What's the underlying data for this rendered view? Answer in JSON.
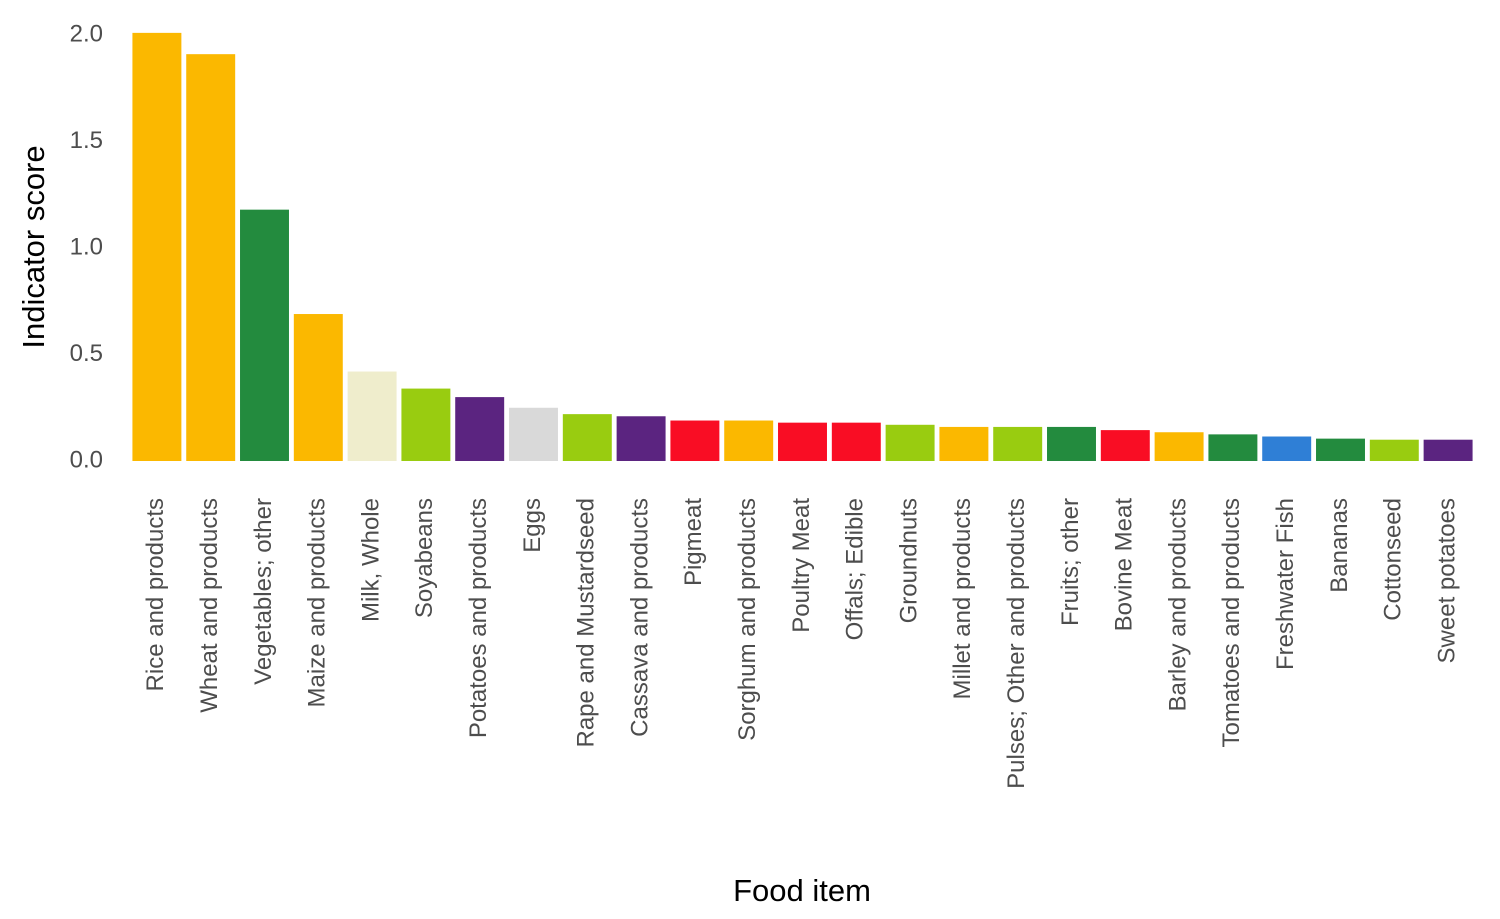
{
  "chart_data": {
    "type": "bar",
    "x_label": "Food item",
    "y_label": "Indicator score",
    "categories": [
      "Rice and products",
      "Wheat and products",
      "Vegetables; other",
      "Maize and products",
      "Milk, Whole",
      "Soyabeans",
      "Potatoes and products",
      "Eggs",
      "Rape and Mustardseed",
      "Cassava and products",
      "Pigmeat",
      "Sorghum and products",
      "Poultry Meat",
      "Offals; Edible",
      "Groundnuts",
      "Millet and products",
      "Pulses; Other and products",
      "Fruits; other",
      "Bovine Meat",
      "Barley and products",
      "Tomatoes and products",
      "Freshwater Fish",
      "Bananas",
      "Cottonseed",
      "Sweet potatoes"
    ],
    "values": [
      2.01,
      1.91,
      1.18,
      0.69,
      0.42,
      0.34,
      0.3,
      0.25,
      0.22,
      0.21,
      0.19,
      0.19,
      0.18,
      0.18,
      0.17,
      0.16,
      0.16,
      0.16,
      0.145,
      0.135,
      0.125,
      0.115,
      0.105,
      0.1,
      0.1
    ],
    "colors": [
      "#fbb800",
      "#fbb800",
      "#238b3e",
      "#fbb800",
      "#efedcc",
      "#99cc10",
      "#5b2480",
      "#d9d9d9",
      "#99cc10",
      "#5b2480",
      "#f90d24",
      "#fbb800",
      "#f90d24",
      "#f90d24",
      "#99cc10",
      "#fbb800",
      "#99cc10",
      "#238b3e",
      "#f90d24",
      "#fbb800",
      "#238b3e",
      "#2f7fd6",
      "#238b3e",
      "#99cc10",
      "#5b2480"
    ],
    "ylim": [
      0,
      2.03
    ],
    "yticks": [
      {
        "value": 0,
        "label": "0.0"
      },
      0.5,
      {
        "value": 1,
        "label": "1.0"
      },
      1.5,
      {
        "value": 2,
        "label": "2.0"
      }
    ],
    "grid": false
  }
}
